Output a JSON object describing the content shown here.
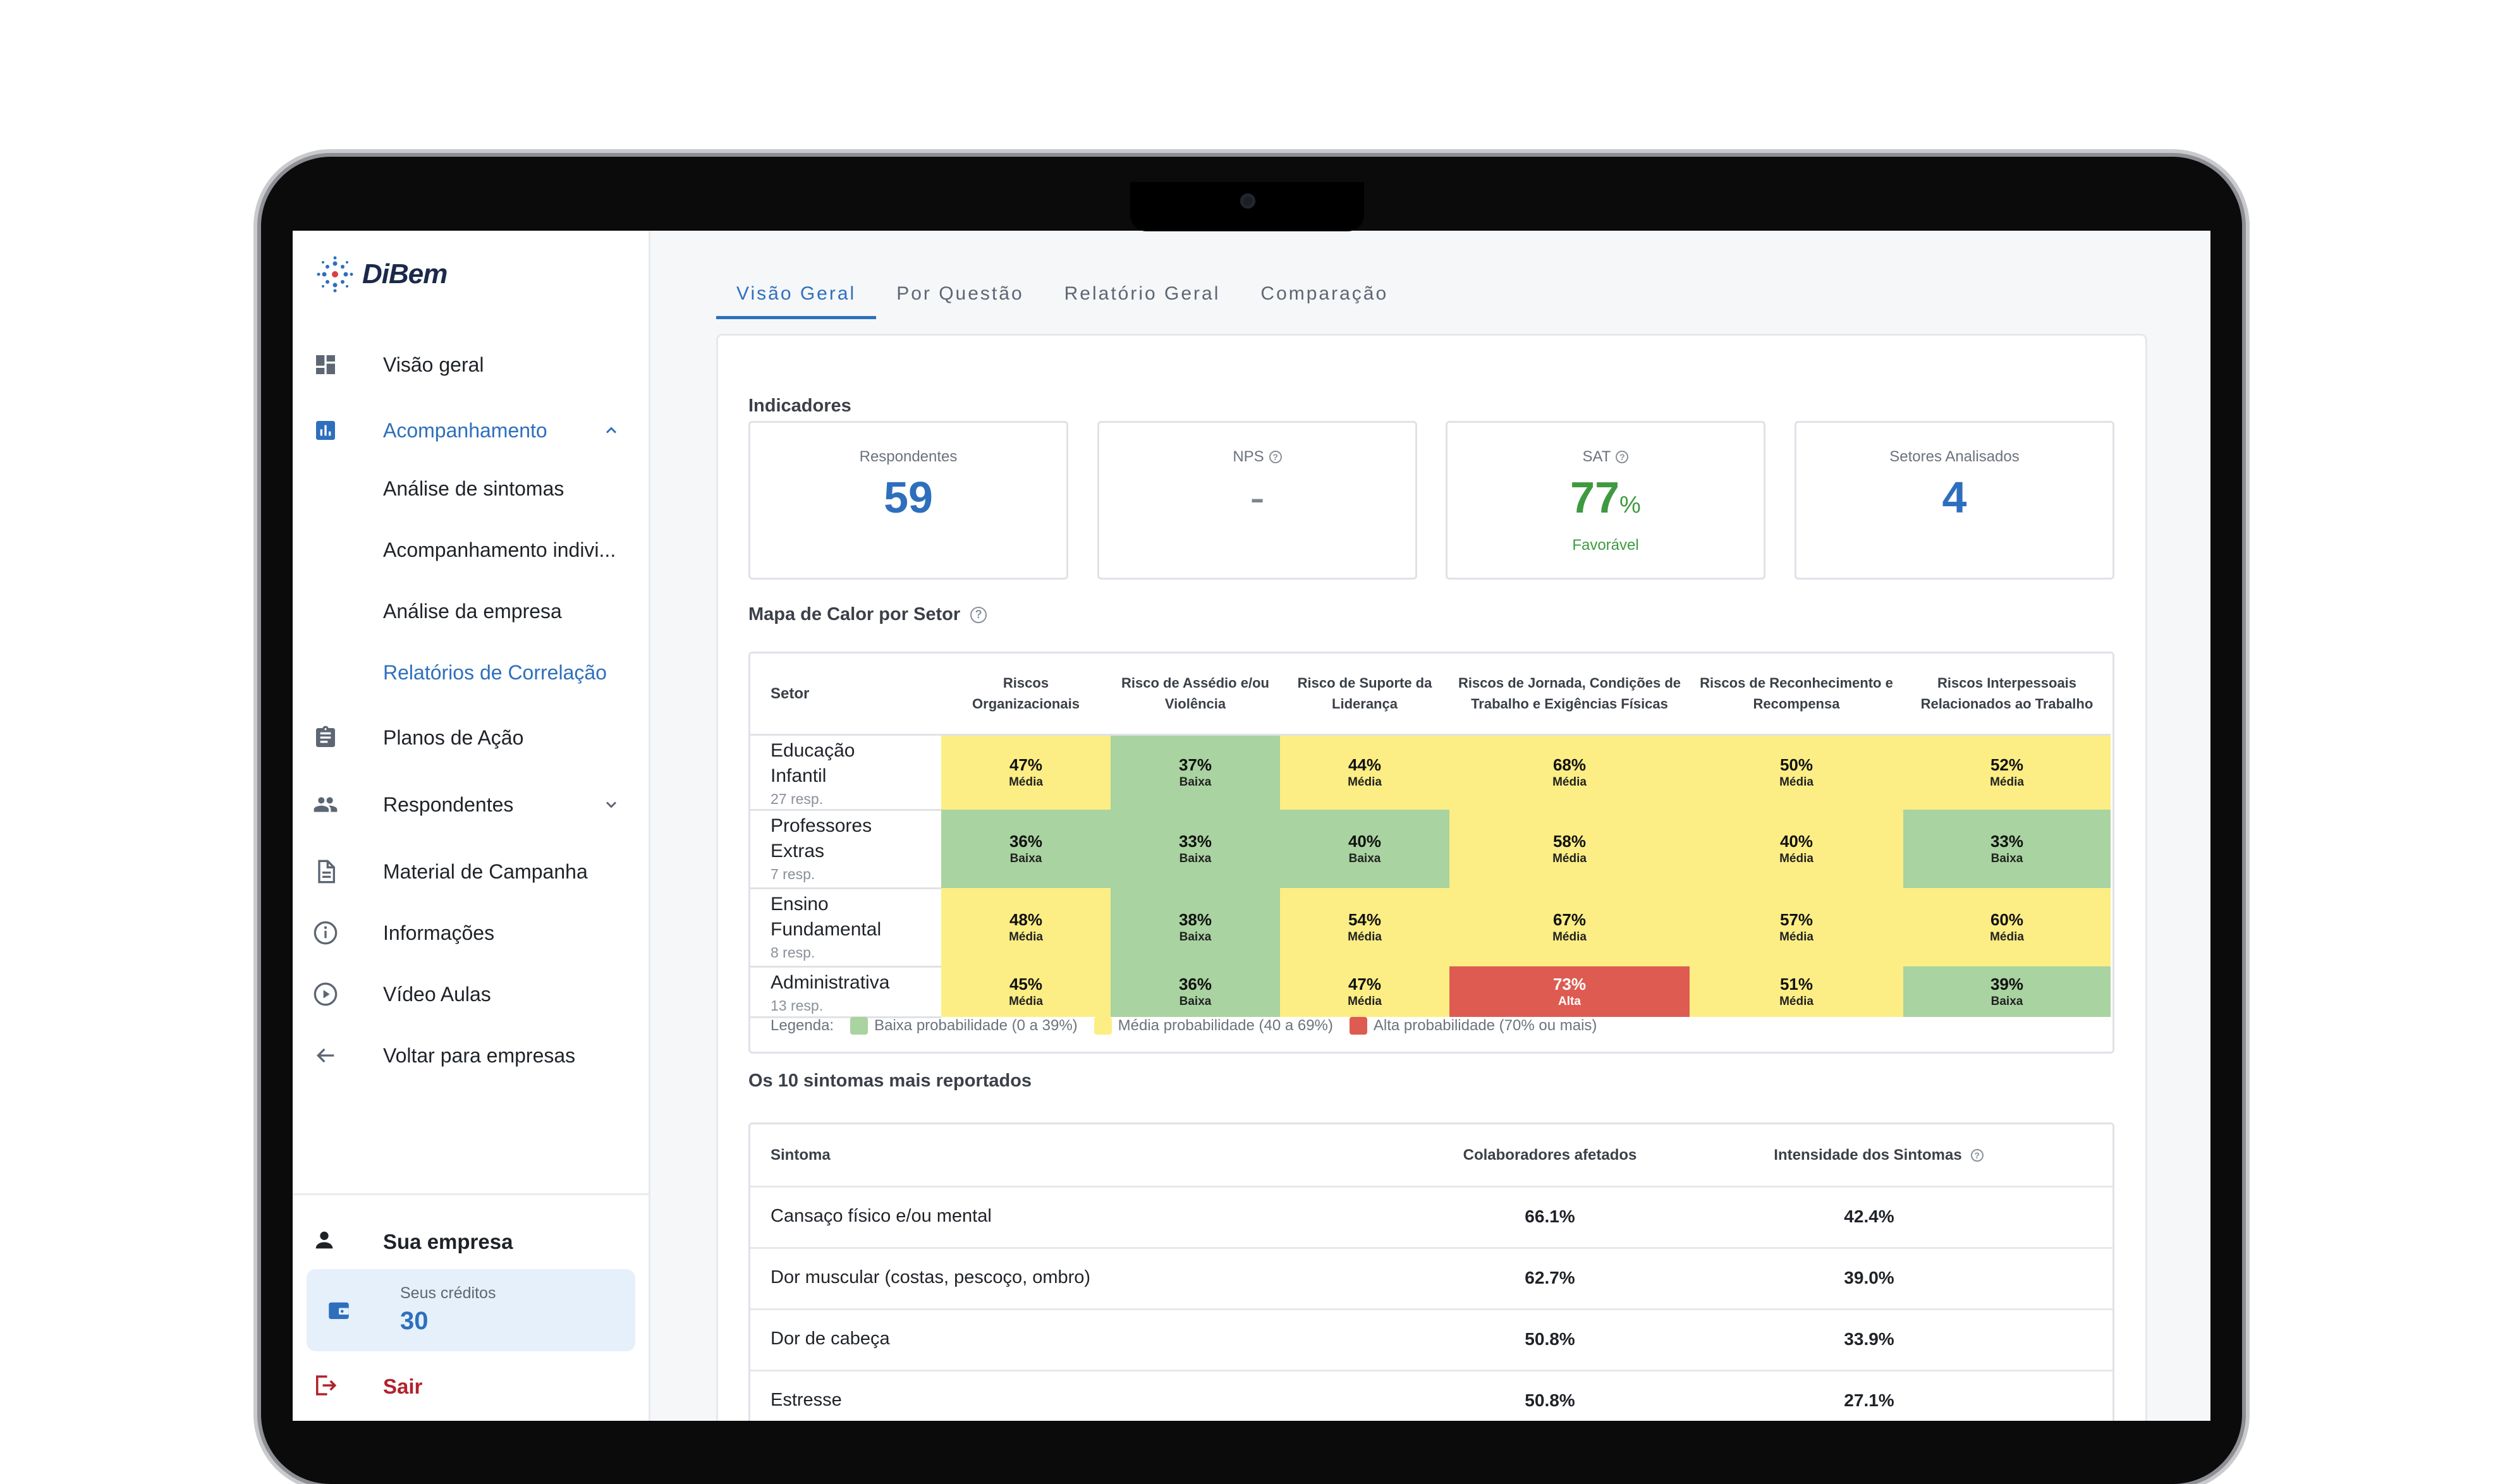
{
  "brand": {
    "name": "DiBem"
  },
  "sidebar": {
    "items": [
      {
        "label": "Visão geral",
        "icon": "dashboard-icon"
      },
      {
        "label": "Acompanhamento",
        "icon": "bar-chart-icon"
      },
      {
        "label": "Planos de Ação",
        "icon": "clipboard-icon"
      },
      {
        "label": "Respondentes",
        "icon": "people-icon"
      },
      {
        "label": "Material de Campanha",
        "icon": "document-icon"
      },
      {
        "label": "Informações",
        "icon": "info-icon"
      },
      {
        "label": "Vídeo Aulas",
        "icon": "play-circle-icon"
      },
      {
        "label": "Voltar para empresas",
        "icon": "arrow-left-icon"
      }
    ],
    "sub_items": [
      {
        "label": "Análise de sintomas"
      },
      {
        "label": "Acompanhamento indivi..."
      },
      {
        "label": "Análise da empresa"
      },
      {
        "label": "Relatórios de Correlação"
      }
    ],
    "company_label": "Sua empresa",
    "credits_caption": "Seus créditos",
    "credits_value": "30",
    "logout_label": "Sair"
  },
  "tabs": [
    {
      "label": "Visão Geral"
    },
    {
      "label": "Por Questão"
    },
    {
      "label": "Relatório Geral"
    },
    {
      "label": "Comparação"
    }
  ],
  "indicators": {
    "title": "Indicadores",
    "respondents": {
      "label": "Respondentes",
      "value": "59"
    },
    "nps": {
      "label": "NPS",
      "value": "-"
    },
    "sat": {
      "label": "SAT",
      "value": "77",
      "unit": "%",
      "status": "Favorável"
    },
    "sectors": {
      "label": "Setores Analisados",
      "value": "4"
    }
  },
  "heatmap": {
    "title": "Mapa de Calor por Setor",
    "sector_header": "Setor",
    "columns": [
      "Riscos Organizacionais",
      "Risco de Assédio e/ou Violência",
      "Risco de Suporte da Liderança",
      "Riscos de Jornada, Condições de Trabalho e Exigências Físicas",
      "Riscos de Reconhecimento e Recompensa",
      "Riscos Interpessoais Relacionados ao Trabalho"
    ],
    "rows": [
      {
        "name": "Educação Infantil",
        "resp": "27 resp.",
        "cells": [
          {
            "p": "47%",
            "l": "Média"
          },
          {
            "p": "37%",
            "l": "Baixa"
          },
          {
            "p": "44%",
            "l": "Média"
          },
          {
            "p": "68%",
            "l": "Média"
          },
          {
            "p": "50%",
            "l": "Média"
          },
          {
            "p": "52%",
            "l": "Média"
          }
        ]
      },
      {
        "name": "Professores Extras",
        "resp": "7 resp.",
        "cells": [
          {
            "p": "36%",
            "l": "Baixa"
          },
          {
            "p": "33%",
            "l": "Baixa"
          },
          {
            "p": "40%",
            "l": "Baixa"
          },
          {
            "p": "58%",
            "l": "Média"
          },
          {
            "p": "40%",
            "l": "Média"
          },
          {
            "p": "33%",
            "l": "Baixa"
          }
        ]
      },
      {
        "name": "Ensino Fundamental",
        "resp": "8 resp.",
        "cells": [
          {
            "p": "48%",
            "l": "Média"
          },
          {
            "p": "38%",
            "l": "Baixa"
          },
          {
            "p": "54%",
            "l": "Média"
          },
          {
            "p": "67%",
            "l": "Média"
          },
          {
            "p": "57%",
            "l": "Média"
          },
          {
            "p": "60%",
            "l": "Média"
          }
        ]
      },
      {
        "name": "Administrativa",
        "resp": "13 resp.",
        "cells": [
          {
            "p": "45%",
            "l": "Média"
          },
          {
            "p": "36%",
            "l": "Baixa"
          },
          {
            "p": "47%",
            "l": "Média"
          },
          {
            "p": "73%",
            "l": "Alta"
          },
          {
            "p": "51%",
            "l": "Média"
          },
          {
            "p": "39%",
            "l": "Baixa"
          }
        ]
      }
    ],
    "legend": {
      "label": "Legenda:",
      "low": "Baixa probabilidade (0 a 39%)",
      "mid": "Média probabilidade (40 a 69%)",
      "high": "Alta probabilidade (70% ou mais)"
    },
    "colors": {
      "Baixa": "#a9d3a0",
      "Média": "#fcee84",
      "Alta": "#dd5b51"
    }
  },
  "symptoms": {
    "title": "Os 10 sintomas mais reportados",
    "headers": {
      "symptom": "Sintoma",
      "affected": "Colaboradores afetados",
      "intensity": "Intensidade dos Sintomas"
    },
    "rows": [
      {
        "name": "Cansaço físico e/ou mental",
        "affected": "66.1%",
        "intensity": "42.4%"
      },
      {
        "name": "Dor muscular (costas, pescoço, ombro)",
        "affected": "62.7%",
        "intensity": "39.0%"
      },
      {
        "name": "Dor de cabeça",
        "affected": "50.8%",
        "intensity": "33.9%"
      },
      {
        "name": "Estresse",
        "affected": "50.8%",
        "intensity": "27.1%"
      }
    ]
  }
}
